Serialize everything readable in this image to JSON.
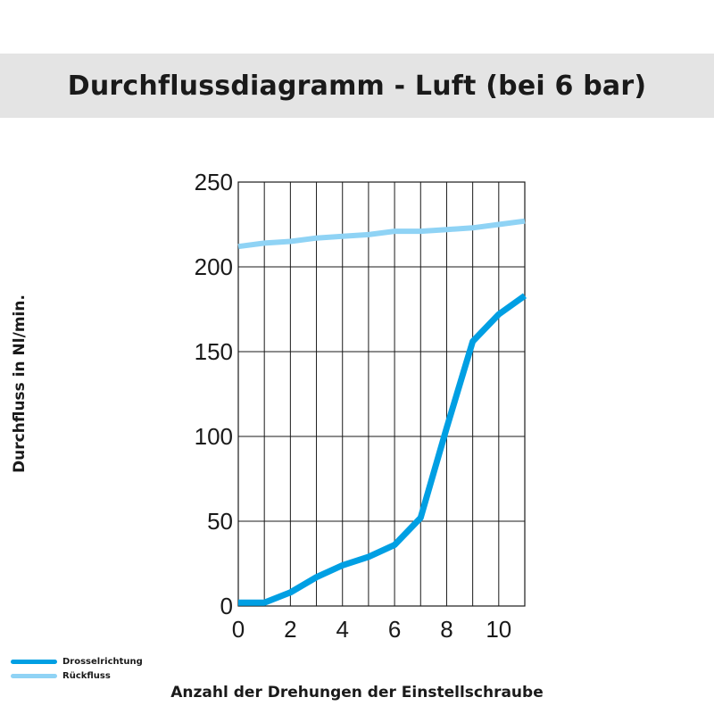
{
  "chart_data": {
    "type": "line",
    "title": "Durchflussdiagramm - Luft (bei 6 bar)",
    "xlabel": "Anzahl der Drehungen der Einstellschraube",
    "ylabel": "Durchfluss in Nl/min.",
    "xlim": [
      0,
      11
    ],
    "ylim": [
      0,
      250
    ],
    "x_ticks": [
      0,
      2,
      4,
      6,
      8,
      10
    ],
    "y_ticks": [
      0,
      50,
      100,
      150,
      200,
      250
    ],
    "grid": true,
    "legend_position": "bottom-left",
    "series": [
      {
        "name": "Drosselrichtung",
        "color": "#009fe3",
        "x": [
          0,
          1,
          2,
          3,
          4,
          5,
          6,
          7,
          8,
          9,
          10,
          11
        ],
        "y": [
          2,
          2,
          8,
          17,
          24,
          29,
          36,
          52,
          105,
          156,
          172,
          183
        ]
      },
      {
        "name": "Rückfluss",
        "color": "#8fd3f5",
        "x": [
          0,
          1,
          2,
          3,
          4,
          5,
          6,
          7,
          8,
          9,
          10,
          11
        ],
        "y": [
          212,
          214,
          215,
          217,
          218,
          219,
          221,
          221,
          222,
          223,
          225,
          227
        ]
      }
    ]
  }
}
